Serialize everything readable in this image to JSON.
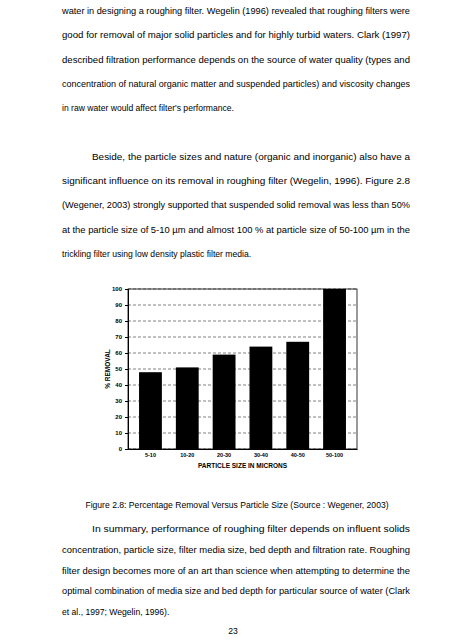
{
  "paragraphs_before": [
    [
      "water in designing a roughing filter. Wegelin (1996) revealed that roughing filters were",
      "good for removal of major solid particles and for highly turbid waters. Clark (1997)",
      "described filtration performance depends on the source of water quality (types and",
      "concentration of natural organic matter and suspended particles) and viscosity changes",
      "in raw water would affect filter's performance."
    ],
    [
      "Beside, the particle sizes and nature (organic and inorganic) also have a",
      "significant influence on its removal in roughing filter (Wegelin, 1996). Figure 2.8",
      "(Wegener, 2003) strongly supported that suspended solid removal was less than 50%",
      "at the particle size of 5-10 µm and almost 100 % at particle size of 50-100 µm in the",
      "trickling filter using low density plastic filter media."
    ]
  ],
  "chart_data": {
    "type": "bar",
    "categories": [
      "5-10",
      "10-20",
      "20-30",
      "30-40",
      "40-50",
      "50-100"
    ],
    "values": [
      48,
      51,
      59,
      64,
      67,
      100
    ],
    "color": "#000000",
    "xlabel": "PARTICLE SIZE IN MICRONS",
    "ylabel": "% REMOVAL",
    "ylim": [
      0,
      100
    ],
    "yticks": [
      0,
      10,
      20,
      30,
      40,
      50,
      60,
      70,
      80,
      90,
      100
    ],
    "grid": true
  },
  "caption": "Figure 2.8: Percentage Removal Versus Particle Size (Source : Wegener, 2003)",
  "paragraphs_after": [
    [
      "In summary, performance of roughing filter depends on influent solids",
      "concentration, particle size, filter media size, bed depth and filtration rate. Roughing",
      "filter design becomes more of an art than science when attempting to determine the",
      "optimal combination of media size and bed depth for particular source of water (Clark",
      "et al., 1997; Wegelin, 1996)."
    ]
  ],
  "page_number": "23"
}
